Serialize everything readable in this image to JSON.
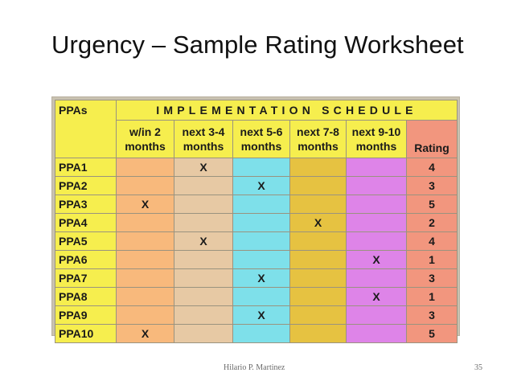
{
  "title": "Urgency – Sample Rating Worksheet",
  "table": {
    "schedule_header": "IMPLEMENTATION SCHEDULE",
    "ppas_label": "PPAs",
    "column_headers": [
      [
        "w/in 2",
        "months"
      ],
      [
        "next 3-4",
        "months"
      ],
      [
        "next 5-6",
        "months"
      ],
      [
        "next 7-8",
        "months"
      ],
      [
        "next 9-10",
        "months"
      ]
    ],
    "rating_label": "Rating",
    "rows": [
      {
        "ppa": "PPA1",
        "marks": [
          "",
          "X",
          "",
          "",
          ""
        ],
        "rating": "4"
      },
      {
        "ppa": "PPA2",
        "marks": [
          "",
          "",
          "X",
          "",
          ""
        ],
        "rating": "3"
      },
      {
        "ppa": "PPA3",
        "marks": [
          "X",
          "",
          "",
          "",
          ""
        ],
        "rating": "5"
      },
      {
        "ppa": "PPA4",
        "marks": [
          "",
          "",
          "",
          "X",
          ""
        ],
        "rating": "2"
      },
      {
        "ppa": "PPA5",
        "marks": [
          "",
          "X",
          "",
          "",
          ""
        ],
        "rating": "4"
      },
      {
        "ppa": "PPA6",
        "marks": [
          "",
          "",
          "",
          "",
          "X"
        ],
        "rating": "1"
      },
      {
        "ppa": "PPA7",
        "marks": [
          "",
          "",
          "X",
          "",
          ""
        ],
        "rating": "3"
      },
      {
        "ppa": "PPA8",
        "marks": [
          "",
          "",
          "",
          "",
          "X"
        ],
        "rating": "1"
      },
      {
        "ppa": "PPA9",
        "marks": [
          "",
          "",
          "X",
          "",
          ""
        ],
        "rating": "3"
      },
      {
        "ppa": "PPA10",
        "marks": [
          "X",
          "",
          "",
          "",
          ""
        ],
        "rating": "5"
      }
    ],
    "colors": {
      "header_yellow": "#f6ee4e",
      "col_within_2": "#f8b97c",
      "col_next_3_4": "#e7c9a4",
      "col_next_5_6": "#7ee0ea",
      "col_next_7_8": "#e6c241",
      "col_next_9_10": "#de84e8",
      "col_rating": "#f2967e"
    }
  },
  "footer": {
    "author": "Hilario P. Martinez",
    "page": "35"
  }
}
